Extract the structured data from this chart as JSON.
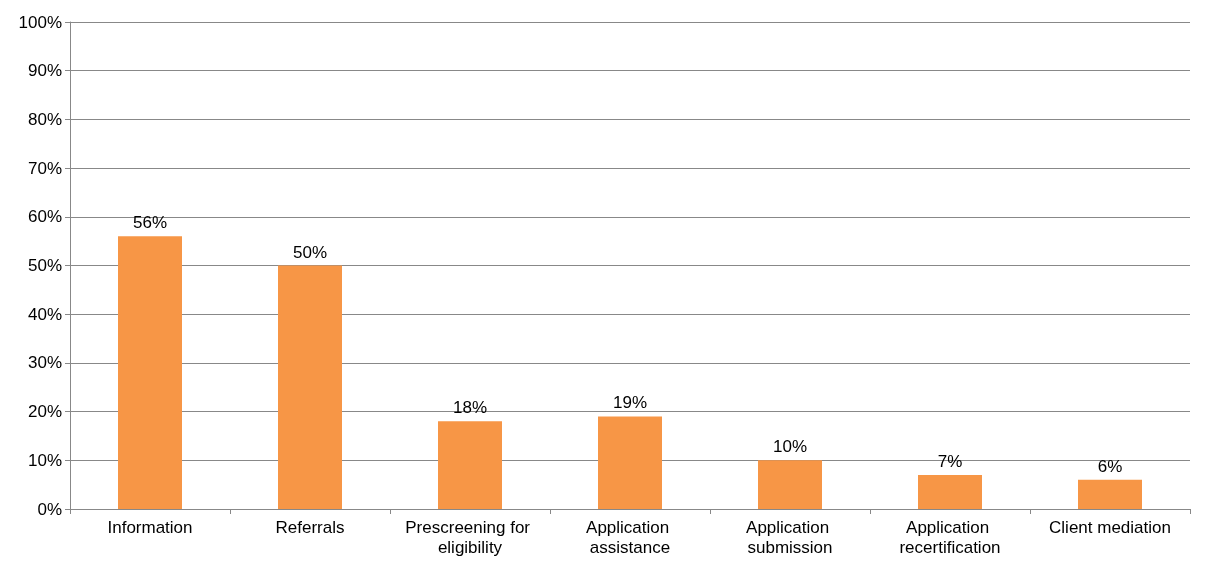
{
  "chart_data": {
    "type": "bar",
    "categories": [
      "Information",
      "Referrals",
      "Prescreening for eligibility",
      "Application assistance",
      "Application submission",
      "Application recertification",
      "Client mediation"
    ],
    "values": [
      56,
      50,
      18,
      19,
      10,
      7,
      6
    ],
    "value_labels": [
      "56%",
      "50%",
      "18%",
      "19%",
      "10%",
      "7%",
      "6%"
    ],
    "color": "#f79646",
    "ylim": [
      0,
      100
    ],
    "yticks": [
      {
        "value": 0,
        "label": "0%"
      },
      {
        "value": 10,
        "label": "10%"
      },
      {
        "value": 20,
        "label": "20%"
      },
      {
        "value": 30,
        "label": "30%"
      },
      {
        "value": 40,
        "label": "40%"
      },
      {
        "value": 50,
        "label": "50%"
      },
      {
        "value": 60,
        "label": "60%"
      },
      {
        "value": 70,
        "label": "70%"
      },
      {
        "value": 80,
        "label": "80%"
      },
      {
        "value": 90,
        "label": "90%"
      },
      {
        "value": 100,
        "label": "100%"
      }
    ],
    "grid": "y"
  }
}
